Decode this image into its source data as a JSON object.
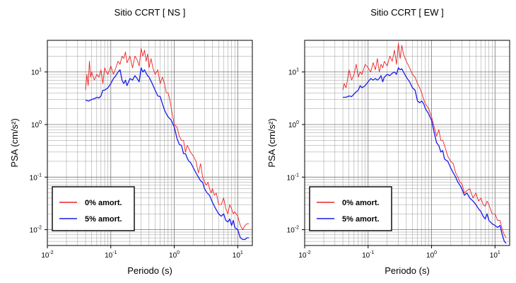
{
  "chart_data": [
    {
      "type": "line",
      "title": "Sitio CCRT [ NS ]",
      "xlabel": "Periodo (s)",
      "ylabel": "PSA (cm/s²)",
      "x_scale": "log",
      "y_scale": "log",
      "xlim": [
        0.01,
        17
      ],
      "ylim": [
        0.005,
        40
      ],
      "x_ticks": [
        {
          "value": 0.01,
          "base": "10",
          "exp": "-2"
        },
        {
          "value": 0.1,
          "base": "10",
          "exp": "-1"
        },
        {
          "value": 1,
          "base": "10",
          "exp": "0"
        },
        {
          "value": 10,
          "base": "10",
          "exp": "1"
        }
      ],
      "y_ticks": [
        {
          "value": 0.01,
          "base": "10",
          "exp": "-2"
        },
        {
          "value": 0.1,
          "base": "10",
          "exp": "-1"
        },
        {
          "value": 1,
          "base": "10",
          "exp": "0"
        },
        {
          "value": 10,
          "base": "10",
          "exp": "1"
        }
      ],
      "grid": true,
      "legend_position": "bottom-left",
      "series": [
        {
          "name": "0% amort.",
          "color": "#ee2222",
          "x": [
            0.04,
            0.042,
            0.044,
            0.046,
            0.048,
            0.05,
            0.055,
            0.06,
            0.065,
            0.07,
            0.075,
            0.08,
            0.085,
            0.09,
            0.1,
            0.11,
            0.12,
            0.13,
            0.14,
            0.15,
            0.16,
            0.17,
            0.18,
            0.2,
            0.22,
            0.24,
            0.26,
            0.28,
            0.3,
            0.32,
            0.34,
            0.36,
            0.38,
            0.4,
            0.43,
            0.46,
            0.5,
            0.55,
            0.6,
            0.65,
            0.7,
            0.75,
            0.8,
            0.85,
            0.9,
            1.0,
            1.1,
            1.2,
            1.3,
            1.4,
            1.5,
            1.6,
            1.7,
            1.8,
            2.0,
            2.2,
            2.4,
            2.6,
            2.8,
            3.0,
            3.2,
            3.4,
            3.6,
            3.8,
            4.0,
            4.3,
            4.6,
            5.0,
            5.5,
            6.0,
            6.5,
            7.0,
            7.5,
            8.0,
            8.5,
            9.0,
            10.0,
            11.0,
            12.0,
            13.0,
            14.0,
            15.0
          ],
          "y": [
            4.5,
            9,
            5.5,
            16,
            8,
            10,
            7,
            9,
            8,
            11,
            6,
            12,
            10,
            9,
            13,
            9,
            12,
            16,
            14,
            20,
            18,
            24,
            15,
            20,
            12,
            20,
            17,
            13,
            28,
            20,
            26,
            16,
            22,
            12,
            18,
            12,
            9,
            11,
            6,
            8,
            6,
            4,
            4,
            3,
            2,
            1,
            0.9,
            0.6,
            0.5,
            0.5,
            0.3,
            0.4,
            0.35,
            0.3,
            0.25,
            0.2,
            0.12,
            0.18,
            0.1,
            0.08,
            0.07,
            0.08,
            0.06,
            0.05,
            0.06,
            0.045,
            0.05,
            0.03,
            0.03,
            0.04,
            0.025,
            0.02,
            0.03,
            0.025,
            0.02,
            0.022,
            0.018,
            0.012,
            0.01,
            0.012,
            0.013,
            0.013
          ]
        },
        {
          "name": "5% amort.",
          "color": "#1a1aee",
          "x": [
            0.04,
            0.045,
            0.05,
            0.055,
            0.06,
            0.065,
            0.07,
            0.075,
            0.08,
            0.09,
            0.1,
            0.11,
            0.12,
            0.13,
            0.14,
            0.15,
            0.16,
            0.17,
            0.18,
            0.2,
            0.22,
            0.24,
            0.26,
            0.28,
            0.3,
            0.32,
            0.34,
            0.36,
            0.38,
            0.4,
            0.45,
            0.5,
            0.55,
            0.6,
            0.65,
            0.7,
            0.75,
            0.8,
            0.85,
            0.9,
            1.0,
            1.1,
            1.2,
            1.3,
            1.4,
            1.5,
            1.6,
            1.7,
            1.8,
            2.0,
            2.2,
            2.4,
            2.6,
            2.8,
            3.0,
            3.3,
            3.6,
            4.0,
            4.5,
            5.0,
            5.5,
            6.0,
            6.5,
            7.0,
            7.5,
            8.0,
            8.5,
            9.0,
            10.0,
            11.0,
            12.0,
            13.0,
            14.0,
            15.0
          ],
          "y": [
            2.9,
            2.8,
            3.0,
            3.1,
            3.3,
            3.2,
            3.5,
            4.5,
            4.5,
            5.0,
            6.0,
            7.5,
            8.5,
            10.0,
            11.0,
            7.0,
            6.0,
            7.0,
            5.5,
            7.5,
            7.0,
            8.5,
            7.5,
            6.5,
            12.0,
            10.0,
            11.0,
            9.5,
            8.5,
            8.0,
            6.0,
            4.5,
            3.5,
            3.4,
            2.5,
            1.9,
            1.6,
            1.4,
            1.3,
            1.2,
            0.9,
            0.55,
            0.42,
            0.4,
            0.28,
            0.28,
            0.23,
            0.2,
            0.19,
            0.15,
            0.12,
            0.1,
            0.085,
            0.08,
            0.06,
            0.05,
            0.045,
            0.033,
            0.025,
            0.02,
            0.018,
            0.02,
            0.015,
            0.014,
            0.016,
            0.012,
            0.015,
            0.011,
            0.01,
            0.007,
            0.0065,
            0.0065,
            0.007,
            0.007
          ]
        }
      ]
    },
    {
      "type": "line",
      "title": "Sitio CCRT [ EW ]",
      "xlabel": "Periodo (s)",
      "ylabel": "PSA (cm/s²)",
      "x_scale": "log",
      "y_scale": "log",
      "xlim": [
        0.01,
        17
      ],
      "ylim": [
        0.005,
        40
      ],
      "x_ticks": [
        {
          "value": 0.01,
          "base": "10",
          "exp": "-2"
        },
        {
          "value": 0.1,
          "base": "10",
          "exp": "-1"
        },
        {
          "value": 1,
          "base": "10",
          "exp": "0"
        },
        {
          "value": 10,
          "base": "10",
          "exp": "1"
        }
      ],
      "y_ticks": [
        {
          "value": 0.01,
          "base": "10",
          "exp": "-2"
        },
        {
          "value": 0.1,
          "base": "10",
          "exp": "-1"
        },
        {
          "value": 1,
          "base": "10",
          "exp": "0"
        },
        {
          "value": 10,
          "base": "10",
          "exp": "1"
        }
      ],
      "grid": true,
      "legend_position": "bottom-left",
      "series": [
        {
          "name": "0% amort.",
          "color": "#ee2222",
          "x": [
            0.04,
            0.042,
            0.045,
            0.048,
            0.05,
            0.055,
            0.06,
            0.065,
            0.07,
            0.075,
            0.08,
            0.09,
            0.1,
            0.11,
            0.12,
            0.13,
            0.14,
            0.15,
            0.16,
            0.17,
            0.18,
            0.2,
            0.22,
            0.24,
            0.26,
            0.28,
            0.3,
            0.32,
            0.34,
            0.36,
            0.4,
            0.45,
            0.5,
            0.55,
            0.6,
            0.65,
            0.7,
            0.75,
            0.8,
            0.9,
            1.0,
            1.1,
            1.2,
            1.3,
            1.4,
            1.5,
            1.6,
            1.8,
            2.0,
            2.2,
            2.4,
            2.6,
            2.8,
            3.0,
            3.3,
            3.6,
            4.0,
            4.5,
            5.0,
            5.5,
            6.0,
            6.5,
            7.0,
            7.5,
            8.0,
            9.0,
            10.0,
            11.0,
            12.0,
            13.0,
            14.0,
            15.0
          ],
          "y": [
            4.5,
            6,
            5,
            8,
            11,
            7,
            9,
            14,
            8,
            10,
            9,
            14,
            12,
            10,
            15,
            11,
            18,
            10,
            14,
            12,
            16,
            13,
            20,
            16,
            26,
            14,
            35,
            18,
            32,
            22,
            16,
            12,
            9,
            8,
            6,
            5,
            4,
            3,
            2.5,
            2,
            1.4,
            0.9,
            0.6,
            0.8,
            0.5,
            0.5,
            0.4,
            0.25,
            0.2,
            0.18,
            0.12,
            0.1,
            0.08,
            0.075,
            0.05,
            0.055,
            0.06,
            0.04,
            0.05,
            0.035,
            0.04,
            0.03,
            0.028,
            0.035,
            0.03,
            0.02,
            0.02,
            0.015,
            0.015,
            0.01,
            0.008,
            0.007
          ]
        },
        {
          "name": "5% amort.",
          "color": "#1a1aee",
          "x": [
            0.04,
            0.045,
            0.05,
            0.055,
            0.06,
            0.065,
            0.07,
            0.075,
            0.08,
            0.09,
            0.1,
            0.11,
            0.12,
            0.13,
            0.14,
            0.15,
            0.16,
            0.17,
            0.18,
            0.2,
            0.22,
            0.24,
            0.26,
            0.28,
            0.3,
            0.32,
            0.34,
            0.36,
            0.4,
            0.45,
            0.5,
            0.55,
            0.6,
            0.65,
            0.7,
            0.75,
            0.8,
            0.9,
            1.0,
            1.1,
            1.2,
            1.3,
            1.4,
            1.5,
            1.6,
            1.8,
            2.0,
            2.2,
            2.4,
            2.6,
            2.8,
            3.0,
            3.3,
            3.6,
            4.0,
            4.5,
            5.0,
            5.5,
            6.0,
            6.5,
            7.0,
            7.5,
            8.0,
            9.0,
            10.0,
            11.0,
            12.0,
            13.0,
            14.0,
            15.0
          ],
          "y": [
            3.3,
            3.3,
            3.5,
            3.4,
            3.8,
            4.2,
            4.5,
            5.5,
            5.0,
            5.5,
            6.5,
            7.5,
            7.0,
            7.5,
            7.0,
            7.5,
            8.5,
            6.5,
            8.0,
            9.0,
            8.5,
            9.5,
            10.0,
            9.0,
            12.0,
            11.0,
            11.5,
            10.0,
            8.0,
            6.5,
            5.0,
            4.5,
            2.8,
            2.6,
            2.8,
            2.5,
            2.0,
            1.6,
            1.2,
            0.7,
            0.45,
            0.4,
            0.3,
            0.32,
            0.22,
            0.2,
            0.15,
            0.12,
            0.1,
            0.08,
            0.07,
            0.06,
            0.045,
            0.05,
            0.04,
            0.035,
            0.03,
            0.025,
            0.022,
            0.018,
            0.016,
            0.02,
            0.015,
            0.013,
            0.012,
            0.011,
            0.012,
            0.008,
            0.006,
            0.0055
          ]
        }
      ]
    }
  ]
}
